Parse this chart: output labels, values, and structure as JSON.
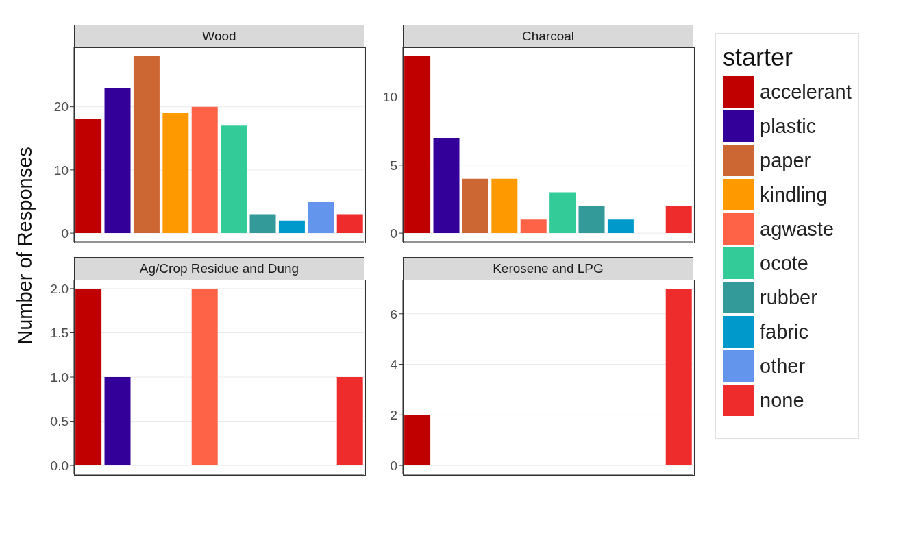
{
  "chart_data": [
    {
      "type": "bar",
      "title": "Wood",
      "ylabel": "Number of Responses",
      "legend": "right",
      "legend_title": "starter",
      "categories": [
        null,
        null,
        null,
        null,
        null,
        null,
        null,
        null,
        null,
        null
      ],
      "stacked": true,
      "grid": true,
      "tick_labels": "y",
      "ylim": [
        -1.4,
        29.4
      ],
      "yticks": [
        0,
        10,
        20
      ],
      "series": [
        {
          "name": "accelerant",
          "color": "#c00000",
          "values": [
            18,
            null,
            null,
            null,
            null,
            null,
            null,
            null,
            null,
            null
          ]
        },
        {
          "name": "plastic",
          "color": "#330099",
          "values": [
            null,
            23,
            null,
            null,
            null,
            null,
            null,
            null,
            null,
            null
          ]
        },
        {
          "name": "paper",
          "color": "#cc6633",
          "values": [
            null,
            null,
            28,
            null,
            null,
            null,
            null,
            null,
            null,
            null
          ]
        },
        {
          "name": "kindling",
          "color": "#ff9900",
          "values": [
            null,
            null,
            null,
            19,
            null,
            null,
            null,
            null,
            null,
            null
          ]
        },
        {
          "name": "agwaste",
          "color": "#ff6347",
          "values": [
            null,
            null,
            null,
            null,
            20,
            null,
            null,
            null,
            null,
            null
          ]
        },
        {
          "name": "ocote",
          "color": "#33cc99",
          "values": [
            null,
            null,
            null,
            null,
            null,
            17,
            null,
            null,
            null,
            null
          ]
        },
        {
          "name": "rubber",
          "color": "#339999",
          "values": [
            null,
            null,
            null,
            null,
            null,
            null,
            3,
            null,
            null,
            null
          ]
        },
        {
          "name": "fabric",
          "color": "#0099cc",
          "values": [
            null,
            null,
            null,
            null,
            null,
            null,
            null,
            2,
            null,
            null
          ]
        },
        {
          "name": "other",
          "color": "#6495ed",
          "values": [
            null,
            null,
            null,
            null,
            null,
            null,
            null,
            null,
            5,
            null
          ]
        },
        {
          "name": "none",
          "color": "#ee2c2c",
          "values": [
            null,
            null,
            null,
            null,
            null,
            null,
            null,
            null,
            null,
            3
          ]
        }
      ]
    },
    {
      "type": "bar",
      "title": "Charcoal",
      "categories": [
        null,
        null,
        null,
        null,
        null,
        null,
        null,
        null,
        null,
        null
      ],
      "stacked": true,
      "grid": true,
      "tick_labels": "y",
      "ylim": [
        -0.65,
        13.65
      ],
      "yticks": [
        0,
        5,
        10
      ],
      "series": [
        {
          "color": "#c00000",
          "values": [
            13,
            null,
            null,
            null,
            null,
            null,
            null,
            null,
            null,
            null
          ]
        },
        {
          "color": "#330099",
          "values": [
            null,
            7,
            null,
            null,
            null,
            null,
            null,
            null,
            null,
            null
          ]
        },
        {
          "color": "#cc6633",
          "values": [
            null,
            null,
            4,
            null,
            null,
            null,
            null,
            null,
            null,
            null
          ]
        },
        {
          "color": "#ff9900",
          "values": [
            null,
            null,
            null,
            4,
            null,
            null,
            null,
            null,
            null,
            null
          ]
        },
        {
          "color": "#ff6347",
          "values": [
            null,
            null,
            null,
            null,
            1,
            null,
            null,
            null,
            null,
            null
          ]
        },
        {
          "color": "#33cc99",
          "values": [
            null,
            null,
            null,
            null,
            null,
            3,
            null,
            null,
            null,
            null
          ]
        },
        {
          "color": "#339999",
          "values": [
            null,
            null,
            null,
            null,
            null,
            null,
            2,
            null,
            null,
            null
          ]
        },
        {
          "color": "#0099cc",
          "values": [
            null,
            null,
            null,
            null,
            null,
            null,
            null,
            1,
            null,
            null
          ]
        },
        {
          "color": "#ee2c2c",
          "values": [
            null,
            null,
            null,
            null,
            null,
            null,
            null,
            null,
            null,
            2
          ]
        }
      ]
    },
    {
      "type": "bar",
      "title": "Ag/Crop Residue and Dung",
      "categories": [
        null,
        null,
        null,
        null,
        null,
        null,
        null,
        null,
        null,
        null
      ],
      "stacked": true,
      "grid": true,
      "tick_labels": "y",
      "ylim": [
        -0.1,
        2.1
      ],
      "yticks": [
        {
          "value": 0,
          "label": "0.0"
        },
        {
          "value": 0.5,
          "label": "0.5"
        },
        {
          "value": 1,
          "label": "1.0"
        },
        {
          "value": 1.5,
          "label": "1.5"
        },
        {
          "value": 2,
          "label": "2.0"
        }
      ],
      "series": [
        {
          "color": "#c00000",
          "values": [
            2,
            null,
            null,
            null,
            null,
            null,
            null,
            null,
            null,
            null
          ]
        },
        {
          "color": "#330099",
          "values": [
            null,
            1,
            null,
            null,
            null,
            null,
            null,
            null,
            null,
            null
          ]
        },
        {
          "color": "#ff6347",
          "values": [
            null,
            null,
            null,
            null,
            2,
            null,
            null,
            null,
            null,
            null
          ]
        },
        {
          "color": "#ee2c2c",
          "values": [
            null,
            null,
            null,
            null,
            null,
            null,
            null,
            null,
            null,
            1
          ]
        }
      ]
    },
    {
      "type": "bar",
      "title": "Kerosene and LPG",
      "categories": [
        null,
        null,
        null,
        null,
        null,
        null,
        null,
        null,
        null,
        null
      ],
      "stacked": true,
      "grid": true,
      "tick_labels": "y",
      "ylim": [
        -0.35,
        7.35
      ],
      "yticks": [
        0,
        2,
        4,
        6
      ],
      "series": [
        {
          "color": "#c00000",
          "values": [
            2,
            null,
            null,
            null,
            null,
            null,
            null,
            null,
            null,
            null
          ]
        },
        {
          "color": "#ee2c2c",
          "values": [
            null,
            null,
            null,
            null,
            null,
            null,
            null,
            null,
            null,
            7
          ]
        }
      ]
    }
  ]
}
